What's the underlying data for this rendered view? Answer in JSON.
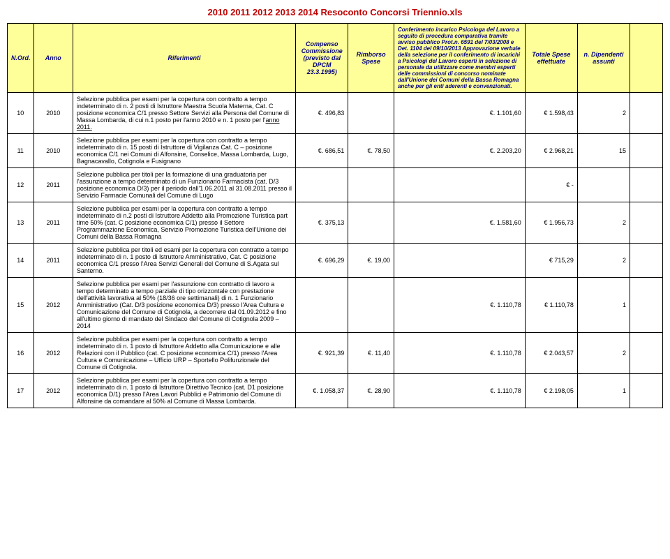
{
  "title": "2010 2011 2012 2013 2014 Resoconto Concorsi Triennio.xls",
  "colors": {
    "title_color": "#c00000",
    "header_bg": "#ffff99",
    "header_fg": "#000080",
    "border": "#000000"
  },
  "fonts": {
    "title_size": 13,
    "cell_size": 9,
    "family": "Arial"
  },
  "columns": [
    {
      "key": "nord",
      "label": "N.Ord.",
      "width": "4%"
    },
    {
      "key": "anno",
      "label": "Anno",
      "width": "6%"
    },
    {
      "key": "rif",
      "label": "Riferimenti",
      "width": "34%"
    },
    {
      "key": "comp",
      "label": "Compenso Commissione (previsto dal DPCM 23.3.1995)",
      "width": "8%"
    },
    {
      "key": "rimb",
      "label": "Rimborso Spese",
      "width": "7%"
    },
    {
      "key": "conf",
      "label": "Conferimento incarico Psicologa del Lavoro a seguito di procedura comparativa tramite avviso pubblico Prot.n. 6591 del 7/03/2008 e Det. 1104 del 09/10/2013 Approvazione verbale della selezione per il conferimento di incarichi a Psicologi del Lavoro esperti  in selezione di personale da utilizzare come membri esperti delle commissioni di concorso nominate dall'Unione dei Comuni della Bassa Romagna anche per gli enti aderenti e convenzionati.",
      "width": "20%"
    },
    {
      "key": "tot",
      "label": "Totale Spese effettuate",
      "width": "8%"
    },
    {
      "key": "dip",
      "label": "n. Dipendenti assunti",
      "width": "8%"
    },
    {
      "key": "last",
      "label": "",
      "width": "5%"
    }
  ],
  "rows": [
    {
      "nord": "10",
      "anno": "2010",
      "rif_prefix": "Selezione pubblica per esami per la copertura con contratto a tempo indeterminato di n. 2 posti di Istruttore Maestra Scuola Materna, Cat. C posizione economica C/1 presso Settore Servizi alla Persona del Comune di Massa Lombarda, di cui n.1 posto per l'anno 2010 e n. 1 posto per l'",
      "rif_underline": "anno 2011.",
      "comp": "€. 496,83",
      "rimb": "",
      "conf": "€. 1.101,60",
      "tot": "€ 1.598,43",
      "dip": "2",
      "last": ""
    },
    {
      "nord": "11",
      "anno": "2010",
      "rif": "Selezione pubblica per esami per la copertura con contratto a tempo indeterminato di n. 15 posti di Istruttore di Vigilanza Cat. C – posizione economica C/1 nei Comuni di Alfonsine, Conselice, Massa Lombarda, Lugo, Bagnacavallo, Cotignola e Fusignano",
      "comp": "€. 686,51",
      "rimb": "€. 78,50",
      "conf": "€. 2.203,20",
      "tot": "€ 2.968,21",
      "dip": "15",
      "last": ""
    },
    {
      "nord": "12",
      "anno": "2011",
      "rif": "Selezione pubblica per titoli per la formazione di una graduatoria per l'assunzione a tempo determinato di un Funzionario Farmacista (cat. D/3 posizione economica D/3) per il periodo dall'1.06.2011 al 31.08.2011 presso il Servizio Farmacie Comunali del Comune di Lugo",
      "comp": "",
      "rimb": "",
      "conf": "",
      "tot": "€ -",
      "dip": "",
      "last": ""
    },
    {
      "nord": "13",
      "anno": "2011",
      "rif": "Selezione pubblica per esami per la copertura con contratto a tempo indeterminato di n.2 posti di Istruttore Addetto alla Promozione Turistica part time 50% (cat. C posizione economica C/1) presso il Settore Programmazione Economica, Servizio Promozione Turistica dell'Unione dei Comuni della Bassa Romagna",
      "comp": "€. 375,13",
      "rimb": "",
      "conf": "€. 1.581,60",
      "tot": "€ 1.956,73",
      "dip": "2",
      "last": ""
    },
    {
      "nord": "14",
      "anno": "2011",
      "rif": "Selezione pubblica per titoli ed esami per la copertura con contratto a tempo indeterminato di n. 1 posto di Istruttore Amministrativo, Cat. C posizione economica C/1 presso l'Area Servizi Generali del Comune di S.Agata sul Santerno.",
      "comp": "€. 696,29",
      "rimb": "€. 19,00",
      "conf": "",
      "tot": "€ 715,29",
      "dip": "2",
      "last": ""
    },
    {
      "nord": "15",
      "anno": "2012",
      "rif": "Selezione pubblica per esami per l'assunzione con contratto di lavoro a tempo determinato a tempo parziale di tipo orizzontale con prestazione dell'attività lavorativa al 50% (18/36 ore settimanali) di n. 1 Funzionario Amministrativo (Cat. D/3 posizione economica D/3) presso l'Area Cultura e Comunicazione del Comune di Cotignola, a decorrere dal 01.09.2012 e fino all'ultimo giorno di mandato del Sindaco del Comune di Cotignola 2009 – 2014",
      "comp": "",
      "rimb": "",
      "conf": "€. 1.110,78",
      "tot": "€ 1.110,78",
      "dip": "1",
      "last": ""
    },
    {
      "nord": "16",
      "anno": "2012",
      "rif": "Selezione pubblica per esami per la copertura con contratto a tempo indeterminato di n. 1 posto di Istruttore Addetto alla Comunicazione e alle Relazioni con il Pubblico (cat. C posizione economica C/1) presso l'Area Cultura e Comunicazione – Ufficio URP – Sportello Polifunzionale del Comune di Cotignola.",
      "comp": "€. 921,39",
      "rimb": "€. 11,40",
      "conf": "€. 1.110,78",
      "tot": "€ 2.043,57",
      "dip": "2",
      "last": ""
    },
    {
      "nord": "17",
      "anno": "2012",
      "rif": "Selezione pubblica per esami per la copertura con contratto a tempo indeterminato di n. 1 posto di Istruttore Direttivo Tecnico (cat. D1 posizione economica D/1) presso l'Area Lavori Pubblici e Patrimonio del Comune di Alfonsine da comandare al 50% al Comune di Massa Lombarda.",
      "comp": "€. 1.058,37",
      "rimb": "€. 28,90",
      "conf": "€. 1.110,78",
      "tot": "€ 2.198,05",
      "dip": "1",
      "last": ""
    }
  ]
}
